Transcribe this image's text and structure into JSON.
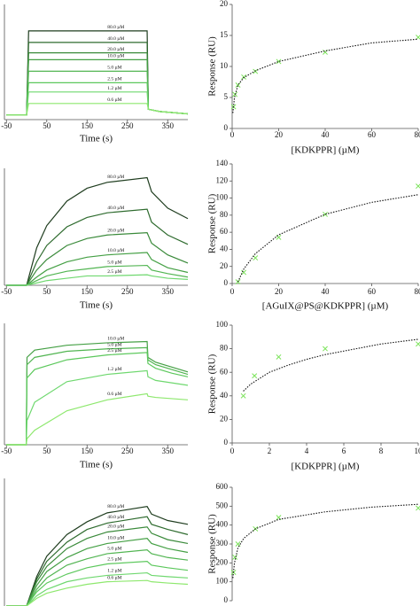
{
  "chart_data": [
    {
      "type": "line",
      "x": [
        -50,
        0,
        5,
        100,
        299,
        302,
        330,
        400
      ],
      "xlim": [
        -55,
        400
      ],
      "ylim": [
        0,
        100
      ],
      "xticks": [
        -50,
        50,
        150,
        250,
        350
      ],
      "xlabel": "Time (s)",
      "series": [
        {
          "name": "80.0 µM",
          "color": "#1f3d1f",
          "values": [
            4,
            4,
            77,
            77,
            77,
            9,
            7,
            5
          ]
        },
        {
          "name": "40.0 µM",
          "color": "#2e6b2e",
          "values": [
            4,
            4,
            67,
            67,
            67,
            9,
            7,
            5
          ]
        },
        {
          "name": "20.0 µM",
          "color": "#3a8a3a",
          "values": [
            4,
            4,
            58,
            58,
            58,
            9,
            7,
            5
          ]
        },
        {
          "name": "10.0 µM",
          "color": "#45a045",
          "values": [
            4,
            4,
            52,
            52,
            52,
            9,
            7,
            5
          ]
        },
        {
          "name": "5.0 µM",
          "color": "#52b552",
          "values": [
            4,
            4,
            42,
            42,
            42,
            9,
            7,
            5
          ]
        },
        {
          "name": "2.5 µM",
          "color": "#5cc85c",
          "values": [
            4,
            4,
            32,
            32,
            32,
            9,
            7,
            5
          ]
        },
        {
          "name": "1.2 µM",
          "color": "#6fd86f",
          "values": [
            4,
            4,
            24,
            24,
            24,
            9,
            7,
            5
          ]
        },
        {
          "name": "0.6 µM",
          "color": "#8ee86e",
          "values": [
            4,
            4,
            14,
            14,
            14,
            9,
            7,
            5
          ]
        }
      ]
    },
    {
      "type": "scatter",
      "xlim": [
        0,
        80
      ],
      "ylim": [
        0,
        20
      ],
      "xticks": [
        0,
        20,
        40,
        60,
        80
      ],
      "yticks": [
        0,
        5,
        10,
        15,
        20
      ],
      "xlabel": "[KDKPPR] (µM)",
      "ylabel": "Response (RU)",
      "series": [
        {
          "marker": "x",
          "color": "#7be35a",
          "x": [
            0.6,
            1.2,
            2.5,
            5,
            10,
            20,
            40,
            80
          ],
          "values": [
            3.5,
            5.5,
            7,
            8.3,
            9.2,
            10.8,
            12.3,
            14.7
          ]
        },
        {
          "line": "dotted",
          "color": "#111111",
          "x": [
            0.3,
            1,
            2.5,
            5,
            10,
            20,
            40,
            60,
            80
          ],
          "values": [
            2.5,
            5,
            7,
            8.2,
            9.3,
            10.8,
            12.5,
            13.8,
            14.4
          ]
        }
      ]
    },
    {
      "type": "line",
      "x": [
        -50,
        0,
        25,
        50,
        100,
        150,
        200,
        299,
        310,
        350,
        400
      ],
      "xlim": [
        -55,
        400
      ],
      "ylim": [
        0,
        100
      ],
      "xticks": [
        -50,
        50,
        150,
        250,
        350
      ],
      "xlabel": "Time (s)",
      "series": [
        {
          "name": "80.0 µM",
          "color": "#1f3d1f",
          "values": [
            0,
            0,
            32,
            51,
            72,
            83,
            88,
            92,
            80,
            66,
            57
          ]
        },
        {
          "name": "40.0 µM",
          "color": "#2e6b2e",
          "values": [
            0,
            0,
            20,
            34,
            50,
            58,
            62,
            65,
            54,
            43,
            35
          ]
        },
        {
          "name": "20.0 µM",
          "color": "#3a8a3a",
          "values": [
            0,
            0,
            13,
            22,
            34,
            40,
            43,
            45,
            36,
            26,
            19
          ]
        },
        {
          "name": "10.0 µM",
          "color": "#45a045",
          "values": [
            0,
            0,
            7,
            13,
            20,
            24,
            26,
            28,
            22,
            15,
            11
          ]
        },
        {
          "name": "5.0 µM",
          "color": "#52b552",
          "values": [
            0,
            0,
            4,
            8,
            12,
            14,
            16,
            17,
            13,
            10,
            7
          ]
        },
        {
          "name": "2.5 µM",
          "color": "#6fd86f",
          "values": [
            0,
            0,
            2,
            4,
            6,
            8,
            8,
            9,
            8,
            6,
            5
          ]
        }
      ]
    },
    {
      "type": "scatter",
      "xlim": [
        0,
        80
      ],
      "ylim": [
        0,
        140
      ],
      "xticks": [
        0,
        20,
        40,
        60,
        80
      ],
      "yticks": [
        0,
        20,
        40,
        60,
        80,
        100,
        120,
        140
      ],
      "xlabel": "[AGuIX@PS@KDKPPR] (µM)",
      "ylabel": "Response (RU)",
      "series": [
        {
          "marker": "x",
          "color": "#7be35a",
          "x": [
            2.5,
            5,
            10,
            20,
            40,
            80
          ],
          "values": [
            2,
            13,
            30,
            54,
            81,
            114
          ]
        },
        {
          "line": "dotted",
          "color": "#111111",
          "x": [
            2.5,
            5,
            10,
            20,
            40,
            60,
            80
          ],
          "values": [
            2,
            17,
            35,
            57,
            81,
            95,
            104
          ]
        }
      ]
    },
    {
      "type": "line",
      "x": [
        -50,
        -1,
        1,
        20,
        100,
        200,
        299,
        301,
        320,
        360,
        400
      ],
      "xlim": [
        -55,
        400
      ],
      "ylim": [
        0,
        100
      ],
      "xticks": [
        -50,
        50,
        150,
        250,
        350
      ],
      "xlabel": "Time (s)",
      "series": [
        {
          "name": "10.0 µM",
          "color": "#45a045",
          "values": [
            0,
            0,
            72,
            78,
            82,
            84,
            85,
            72,
            68,
            64,
            60
          ]
        },
        {
          "name": "5.0 µM",
          "color": "#52b552",
          "values": [
            0,
            0,
            66,
            72,
            77,
            79,
            80,
            70,
            66,
            62,
            58
          ]
        },
        {
          "name": "2.5 µM",
          "color": "#5cc85c",
          "values": [
            0,
            0,
            55,
            62,
            70,
            74,
            76,
            67,
            63,
            59,
            56
          ]
        },
        {
          "name": "1.2 µM",
          "color": "#6fd86f",
          "values": [
            0,
            0,
            20,
            35,
            52,
            58,
            61,
            56,
            53,
            51,
            49
          ]
        },
        {
          "name": "0.6 µM",
          "color": "#8ee86e",
          "values": [
            0,
            0,
            5,
            12,
            28,
            37,
            42,
            40,
            39,
            38,
            37
          ]
        }
      ]
    },
    {
      "type": "scatter",
      "xlim": [
        0,
        10
      ],
      "ylim": [
        0,
        100
      ],
      "xticks": [
        0,
        2,
        4,
        6,
        8,
        10
      ],
      "yticks": [
        0,
        20,
        40,
        60,
        80,
        100
      ],
      "xlabel": "[KDKPPR] (µM)",
      "ylabel": "Response (RU)",
      "series": [
        {
          "marker": "x",
          "color": "#7be35a",
          "x": [
            0.6,
            1.2,
            2.5,
            5,
            10
          ],
          "values": [
            40,
            57,
            73,
            80,
            84
          ]
        },
        {
          "line": "dotted",
          "color": "#111111",
          "x": [
            0.6,
            1,
            2,
            3,
            4,
            5,
            6,
            8,
            10
          ],
          "values": [
            44,
            50,
            60,
            66,
            71,
            75,
            78,
            84,
            88
          ]
        }
      ]
    },
    {
      "type": "line",
      "x": [
        -50,
        0,
        25,
        50,
        100,
        150,
        200,
        299,
        310,
        350,
        400
      ],
      "xlim": [
        -55,
        400
      ],
      "ylim": [
        0,
        100
      ],
      "series": [
        {
          "name": "80.0 µM",
          "color": "#1f3d1f",
          "values": [
            0,
            0,
            23,
            39,
            56,
            66,
            73,
            78,
            72,
            67,
            64
          ]
        },
        {
          "name": "40.0 µM",
          "color": "#2e6b2e",
          "values": [
            0,
            0,
            21,
            35,
            50,
            60,
            65,
            70,
            64,
            60,
            56
          ]
        },
        {
          "name": "20.0 µM",
          "color": "#3a8a3a",
          "values": [
            0,
            0,
            19,
            31,
            45,
            53,
            58,
            62,
            57,
            52,
            49
          ]
        },
        {
          "name": "10.0 µM",
          "color": "#45a045",
          "values": [
            0,
            0,
            16,
            27,
            38,
            45,
            49,
            53,
            49,
            45,
            42
          ]
        },
        {
          "name": "5.0 µM",
          "color": "#52b552",
          "values": [
            0,
            0,
            13,
            22,
            32,
            37,
            41,
            44,
            41,
            38,
            36
          ]
        },
        {
          "name": "2.5 µM",
          "color": "#5cc85c",
          "values": [
            0,
            0,
            11,
            18,
            25,
            30,
            33,
            35,
            32,
            30,
            28
          ]
        },
        {
          "name": "1.2 µM",
          "color": "#6fd86f",
          "values": [
            0,
            0,
            8,
            13,
            19,
            22,
            24,
            26,
            24,
            23,
            22
          ]
        },
        {
          "name": "0.6 µM",
          "color": "#8ee86e",
          "values": [
            0,
            0,
            6,
            10,
            14,
            17,
            19,
            20,
            19,
            18,
            17
          ]
        }
      ]
    },
    {
      "type": "scatter",
      "xlim": [
        0,
        80
      ],
      "ylim": [
        0,
        600
      ],
      "yticks": [
        0,
        100,
        200,
        300,
        400,
        500,
        600
      ],
      "ylabel": "Response (RU)",
      "series": [
        {
          "marker": "x",
          "color": "#7be35a",
          "x": [
            0.6,
            1.2,
            2.5,
            10,
            20,
            80
          ],
          "values": [
            150,
            230,
            300,
            380,
            440,
            490
          ]
        },
        {
          "line": "dotted",
          "color": "#111111",
          "x": [
            0.3,
            1,
            2.5,
            5,
            10,
            20,
            40,
            60,
            80
          ],
          "values": [
            120,
            200,
            280,
            330,
            380,
            430,
            470,
            495,
            510
          ]
        }
      ]
    }
  ]
}
